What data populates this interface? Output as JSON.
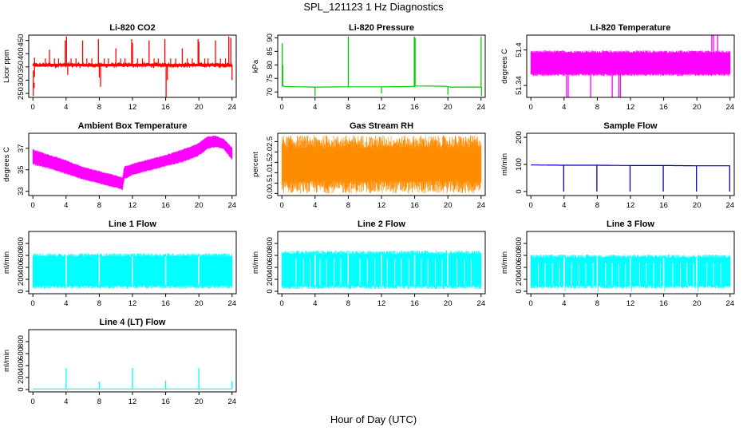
{
  "page": {
    "title": "SPL_121123  1 Hz Diagnostics",
    "x_axis_label": "Hour of Day (UTC)"
  },
  "chart_data": [
    {
      "type": "line",
      "title": "Li-820 CO2",
      "ylabel": "Licor ppm",
      "xticks": [
        0,
        4,
        8,
        12,
        16,
        20,
        24
      ],
      "yticks": [
        250,
        300,
        350,
        400,
        450
      ],
      "xlim": [
        -0.5,
        24.5
      ],
      "ylim": [
        235,
        470
      ],
      "color": "#ff0000",
      "style": "noise",
      "x": [
        0,
        0.15,
        0.3,
        2,
        4,
        6,
        8,
        10,
        12,
        14,
        16,
        18,
        20,
        22,
        24
      ],
      "y": [
        360,
        290,
        355,
        357,
        358,
        357,
        356,
        357,
        357,
        358,
        356,
        357,
        357,
        358,
        355
      ],
      "noise_range": [
        348,
        366
      ],
      "spikes": [
        {
          "x": 0.05,
          "y": 240
        },
        {
          "x": 0.15,
          "y": 270
        },
        {
          "x": 0.2,
          "y": 385
        },
        {
          "x": 2.0,
          "y": 415
        },
        {
          "x": 3.9,
          "y": 450
        },
        {
          "x": 4.05,
          "y": 465
        },
        {
          "x": 4.2,
          "y": 320
        },
        {
          "x": 6.0,
          "y": 450
        },
        {
          "x": 7.9,
          "y": 455
        },
        {
          "x": 8.0,
          "y": 310
        },
        {
          "x": 8.15,
          "y": 275
        },
        {
          "x": 10.0,
          "y": 420
        },
        {
          "x": 11.9,
          "y": 455
        },
        {
          "x": 12.0,
          "y": 440
        },
        {
          "x": 14.0,
          "y": 450
        },
        {
          "x": 15.9,
          "y": 455
        },
        {
          "x": 16.05,
          "y": 235
        },
        {
          "x": 16.2,
          "y": 300
        },
        {
          "x": 18.0,
          "y": 420
        },
        {
          "x": 19.9,
          "y": 455
        },
        {
          "x": 20.0,
          "y": 445
        },
        {
          "x": 22.0,
          "y": 450
        },
        {
          "x": 23.6,
          "y": 465
        },
        {
          "x": 23.85,
          "y": 460
        },
        {
          "x": 24.0,
          "y": 300
        }
      ],
      "small_spikes_up": [
        1.5,
        2.6,
        3.1,
        4.6,
        5.2,
        6.5,
        7.1,
        8.6,
        9.1,
        10.6,
        11.1,
        12.6,
        13.2,
        14.6,
        15.1,
        16.6,
        17.2,
        18.6,
        19.2,
        20.7,
        21.1,
        22.6,
        23.2
      ],
      "small_spike_height": 382
    },
    {
      "type": "line",
      "title": "Li-820 Pressure",
      "ylabel": "kPa",
      "xticks": [
        0,
        4,
        8,
        12,
        16,
        20,
        24
      ],
      "yticks": [
        70,
        75,
        80,
        85,
        90
      ],
      "xlim": [
        -0.5,
        24.5
      ],
      "ylim": [
        68,
        91
      ],
      "color": "#00cc00",
      "style": "line",
      "x": [
        0,
        0.1,
        0.3,
        4,
        8,
        12,
        15.9,
        16.1,
        19.8,
        20.2,
        24
      ],
      "y": [
        72,
        72.5,
        72,
        71.8,
        71.9,
        71.9,
        72,
        72.2,
        72.1,
        71.8,
        71.8
      ],
      "spikes": [
        {
          "x": 0.05,
          "y": 88
        },
        {
          "x": 0.1,
          "y": 80
        },
        {
          "x": 4.0,
          "y": 68.5
        },
        {
          "x": 8.0,
          "y": 90.5
        },
        {
          "x": 12.0,
          "y": 69.5
        },
        {
          "x": 15.95,
          "y": 90.5
        },
        {
          "x": 16.05,
          "y": 90
        },
        {
          "x": 20.0,
          "y": 69
        },
        {
          "x": 24.0,
          "y": 90.5
        },
        {
          "x": 24.05,
          "y": 68.5
        }
      ]
    },
    {
      "type": "line",
      "title": "Li-820 Temperature",
      "ylabel": "degrees C",
      "xticks": [
        0,
        4,
        8,
        12,
        16,
        20,
        24
      ],
      "yticks": [
        51.34,
        51.4
      ],
      "xlim": [
        -0.5,
        24.5
      ],
      "ylim": [
        51.32,
        51.425
      ],
      "color": "#ff00ff",
      "style": "band",
      "x": [
        0,
        24
      ],
      "y_low": [
        51.36,
        51.36
      ],
      "y_high": [
        51.395,
        51.395
      ],
      "spikes": [
        {
          "x": 4.3,
          "y": 51.32
        },
        {
          "x": 4.5,
          "y": 51.32
        },
        {
          "x": 7.2,
          "y": 51.32
        },
        {
          "x": 9.8,
          "y": 51.32
        },
        {
          "x": 10.6,
          "y": 51.32
        },
        {
          "x": 10.8,
          "y": 51.32
        },
        {
          "x": 21.8,
          "y": 51.425
        },
        {
          "x": 22.0,
          "y": 51.425
        },
        {
          "x": 22.5,
          "y": 51.425
        }
      ]
    },
    {
      "type": "area",
      "title": "Ambient Box Temperature",
      "ylabel": "degrees C",
      "xticks": [
        0,
        4,
        8,
        12,
        16,
        20,
        24
      ],
      "yticks": [
        33,
        35,
        37
      ],
      "xlim": [
        -0.5,
        24.5
      ],
      "ylim": [
        32.6,
        38.4
      ],
      "color": "#ff00ff",
      "style": "band",
      "x": [
        0,
        2,
        4,
        6,
        8,
        10,
        10.8,
        11,
        12,
        14,
        16,
        18,
        20,
        21,
        22,
        23,
        24
      ],
      "y_low": [
        35.6,
        35.2,
        34.7,
        34.2,
        33.8,
        33.4,
        33.2,
        34.2,
        34.6,
        35.0,
        35.4,
        35.8,
        36.4,
        37.0,
        37.2,
        37.0,
        36.0
      ],
      "y_high": [
        36.8,
        36.3,
        35.8,
        35.2,
        34.8,
        34.4,
        34.2,
        35.2,
        35.5,
        35.9,
        36.3,
        36.8,
        37.4,
        38.0,
        38.1,
        37.8,
        37.0
      ]
    },
    {
      "type": "scatter",
      "title": "Gas Stream RH",
      "ylabel": "percent",
      "xticks": [
        0,
        4,
        8,
        12,
        16,
        20,
        24
      ],
      "yticks": [
        0,
        0.5,
        1,
        1.5,
        2,
        2.5
      ],
      "ytick_labels": [
        "0.0",
        "0.5",
        "1.0",
        "1.5",
        "2.0",
        "2.5"
      ],
      "xlim": [
        -0.5,
        24.5
      ],
      "ylim": [
        -0.1,
        2.9
      ],
      "color": "#ff8c00",
      "fill_color": "#d4a020",
      "style": "band",
      "x": [
        0,
        24
      ],
      "y_low": [
        0.6,
        0.6
      ],
      "y_high": [
        2.2,
        2.2
      ],
      "noise_range": [
        0.0,
        2.8
      ]
    },
    {
      "type": "line",
      "title": "Sample Flow",
      "ylabel": "ml/min",
      "xticks": [
        0,
        4,
        8,
        12,
        16,
        20,
        24
      ],
      "yticks": [
        0,
        100,
        200
      ],
      "xlim": [
        -0.5,
        24.5
      ],
      "ylim": [
        -15,
        215
      ],
      "color": "#0000cc",
      "style": "line",
      "x": [
        0,
        4,
        8,
        12,
        16,
        20,
        24
      ],
      "y": [
        98,
        97,
        97,
        96,
        96,
        95,
        95
      ],
      "spikes": [
        {
          "x": 3.95,
          "y": 0
        },
        {
          "x": 7.95,
          "y": 0
        },
        {
          "x": 11.95,
          "y": 0
        },
        {
          "x": 15.95,
          "y": 0
        },
        {
          "x": 19.95,
          "y": 0
        },
        {
          "x": 23.95,
          "y": 0
        }
      ]
    },
    {
      "type": "area",
      "title": "Line 1 Flow",
      "ylabel": "ml/min",
      "xticks": [
        0,
        4,
        8,
        12,
        16,
        20,
        24
      ],
      "yticks": [
        0,
        200,
        400,
        600,
        800
      ],
      "xlim": [
        -0.5,
        24.5
      ],
      "ylim": [
        -40,
        1000
      ],
      "color": "#00ffff",
      "style": "band",
      "x": [
        0,
        24
      ],
      "y_low": [
        100,
        100
      ],
      "y_high": [
        580,
        580
      ],
      "gaps": [
        4.0,
        8.0,
        12.0,
        16.0,
        20.0
      ],
      "gap_min": 100,
      "notches": []
    },
    {
      "type": "area",
      "title": "Line 2 Flow",
      "ylabel": "ml/min",
      "xticks": [
        0,
        4,
        8,
        12,
        16,
        20,
        24
      ],
      "yticks": [
        0,
        200,
        400,
        600,
        800
      ],
      "xlim": [
        -0.5,
        24.5
      ],
      "ylim": [
        -40,
        1000
      ],
      "color": "#00ffff",
      "style": "band",
      "x": [
        0,
        24
      ],
      "y_low": [
        100,
        100
      ],
      "y_high": [
        620,
        620
      ],
      "gaps": [
        4.0,
        8.0,
        12.0,
        16.0,
        20.0
      ],
      "gap_min": 100,
      "notches": [
        1.7,
        2.6,
        3.4,
        4.6,
        5.4,
        6.3,
        7.1,
        9.4,
        10.3,
        11.2,
        12.7,
        13.6,
        14.4,
        15.3,
        16.8,
        17.6,
        18.5,
        19.3,
        21.1,
        22.0,
        22.8
      ]
    },
    {
      "type": "area",
      "title": "Line 3 Flow",
      "ylabel": "ml/min",
      "xticks": [
        0,
        4,
        8,
        12,
        16,
        20,
        24
      ],
      "yticks": [
        0,
        200,
        400,
        600,
        800
      ],
      "xlim": [
        -0.5,
        24.5
      ],
      "ylim": [
        -40,
        1000
      ],
      "color": "#00ffff",
      "style": "band",
      "x": [
        0,
        24
      ],
      "y_low": [
        100,
        100
      ],
      "y_high": [
        560,
        560
      ],
      "gaps": [
        4.0,
        8.0,
        12.0,
        16.0,
        20.0
      ],
      "gap_min": -10,
      "notches": [
        0.9,
        1.7,
        2.6,
        3.4,
        4.9,
        5.8,
        6.6,
        7.5,
        9.0,
        9.8,
        10.6,
        11.4,
        13.1,
        13.9,
        14.8,
        15.6,
        17.1,
        18.0,
        18.8,
        19.6,
        21.2,
        22.0,
        22.9
      ]
    },
    {
      "type": "line",
      "title": "Line 4 (LT) Flow",
      "ylabel": "ml/min",
      "xticks": [
        0,
        4,
        8,
        12,
        16,
        20,
        24
      ],
      "yticks": [
        0,
        200,
        400,
        600,
        800
      ],
      "xlim": [
        -0.5,
        24.5
      ],
      "ylim": [
        -40,
        1000
      ],
      "color": "#00ffff",
      "style": "line",
      "x": [
        0,
        24
      ],
      "y": [
        10,
        10
      ],
      "spikes": [
        {
          "x": 4.0,
          "y": 360
        },
        {
          "x": 8.0,
          "y": 130
        },
        {
          "x": 12.0,
          "y": 360
        },
        {
          "x": 16.0,
          "y": 150
        },
        {
          "x": 20.0,
          "y": 360
        },
        {
          "x": 24.0,
          "y": 140
        }
      ]
    }
  ]
}
